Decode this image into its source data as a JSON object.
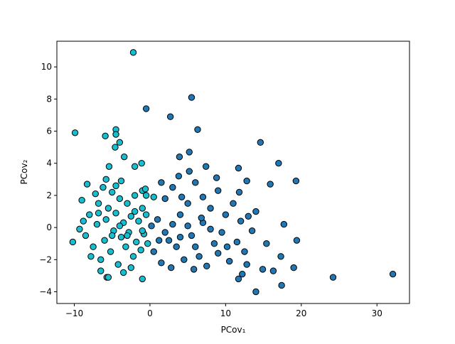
{
  "chart_data": {
    "type": "scatter",
    "x_label": "PCov₁",
    "y_label": "PCov₂",
    "xlim": [
      -12.3,
      34.3
    ],
    "ylim": [
      -4.73,
      11.6
    ],
    "xticks": [
      {
        "value": -10,
        "label": "−10"
      },
      0,
      10,
      20,
      30
    ],
    "yticks": [
      {
        "value": -4,
        "label": "−4"
      },
      {
        "value": -2,
        "label": "−2"
      },
      0,
      2,
      4,
      6,
      8,
      10
    ],
    "edge_color": "#000000",
    "series": [
      {
        "color": "#1f77b4",
        "x": [
          -0.5,
          5.5,
          2.7,
          6.3,
          14.6,
          17.0,
          19.3,
          15.9,
          5.2,
          3.9,
          11.7,
          12.8,
          17.7,
          19.4,
          15.4,
          17.3,
          19.0,
          14.9,
          16.3,
          17.4,
          14.0,
          11.7,
          12.2,
          24.2,
          32.1,
          7.4,
          0.5,
          1,
          1.5,
          2,
          2.5,
          3,
          3.5,
          4,
          4.5,
          5,
          5.5,
          6,
          6.5,
          7,
          7.5,
          8,
          8.5,
          9,
          9.5,
          10,
          10.5,
          11,
          11.5,
          12,
          12.5,
          13,
          13.5,
          14,
          2,
          3,
          4,
          5,
          6,
          7,
          8,
          9,
          1.5,
          3.8,
          5.2,
          8.8,
          10.2,
          11.8,
          0.2,
          1.2,
          4.2,
          6.8,
          2.8,
          5.8,
          12.8
        ],
        "y": [
          7.4,
          8.1,
          6.9,
          6.1,
          5.3,
          4.0,
          2.9,
          2.7,
          4.7,
          4.4,
          3.7,
          2.9,
          0.2,
          -0.8,
          -1.0,
          -1.8,
          -2.5,
          -2.6,
          -2.7,
          -3.6,
          -4.0,
          -3.2,
          -2.9,
          -3.1,
          -2.9,
          3.8,
          -1.5,
          0.5,
          -2.2,
          1.8,
          -0.8,
          2.5,
          -1.2,
          0.8,
          -2,
          1.5,
          -0.5,
          2.8,
          -1.8,
          0.3,
          -2.4,
          1.2,
          -1,
          2.3,
          -0.3,
          0.8,
          -2.1,
          1.5,
          -0.9,
          0.4,
          -1.5,
          0.7,
          -0.2,
          1.0,
          -0.3,
          0.2,
          -0.6,
          0.1,
          -1.2,
          1.9,
          -0.1,
          -1.6,
          2.8,
          3.2,
          3.5,
          3.1,
          -1.2,
          2.2,
          0.1,
          -0.8,
          1.9,
          0.6,
          -2.5,
          -2.6,
          -2.3
        ]
      },
      {
        "color": "#17becf",
        "x": [
          -2.2,
          -9.9,
          -5.9,
          -4.5,
          -4.5,
          -4.6,
          -4.0,
          -3.4,
          -5.4,
          -2.0,
          -1.1,
          -9.0,
          -8.3,
          -1.0,
          -0.6,
          -1.0,
          -5.7,
          -10.2,
          -9.3,
          -8.5,
          -8,
          -7.5,
          -7,
          -6.8,
          -6.5,
          -6.2,
          -6,
          -5.8,
          -5.5,
          -5.2,
          -5,
          -4.8,
          -4.5,
          -4.2,
          -4,
          -3.8,
          -3.5,
          -3.2,
          -3,
          -2.8,
          -2.5,
          -2.2,
          -2,
          -1.8,
          -1.5,
          -1.2,
          -1,
          -0.8,
          -0.5,
          -0.3,
          -7.8,
          -8.8,
          -6.5,
          -5.5,
          -3.5,
          -2.5,
          -6.8,
          -5,
          -4,
          -3,
          -2,
          -1,
          -7.2,
          -5.8,
          -4.5,
          -3.8,
          -0.5,
          0.5
        ],
        "y": [
          10.9,
          5.9,
          5.7,
          6.1,
          5.8,
          5.0,
          5.3,
          4.4,
          3.8,
          3.8,
          4.0,
          1.7,
          2.7,
          2.3,
          2.4,
          -3.2,
          -3.1,
          -0.9,
          -0.1,
          -0.5,
          0.8,
          -1.2,
          0.2,
          1.5,
          -2,
          2.5,
          -0.8,
          0.5,
          1.2,
          -1.5,
          2.2,
          -0.2,
          0.9,
          -2.3,
          1.8,
          -0.6,
          0.3,
          -1.2,
          1.5,
          -0.3,
          0.7,
          -1.8,
          2,
          -0.9,
          0.4,
          -1.4,
          1.2,
          -0.4,
          0.8,
          -1,
          -1.8,
          0.4,
          -2.7,
          -3.1,
          -2.8,
          -2.5,
          0.9,
          -0.5,
          0.1,
          -0.5,
          1.0,
          -0.2,
          2.1,
          3.0,
          2.6,
          2.9,
          2.0,
          1.9
        ]
      }
    ]
  }
}
